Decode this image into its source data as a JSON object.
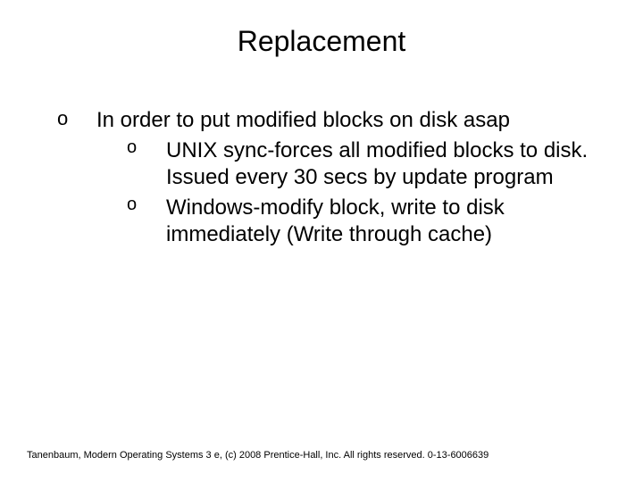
{
  "title": "Replacement",
  "body": {
    "level1": {
      "marker": "o",
      "text": "In order to put modified blocks on disk asap"
    },
    "level2": [
      {
        "marker": "o",
        "text": "UNIX sync-forces all modified blocks to disk. Issued every 30 secs by update program"
      },
      {
        "marker": "o",
        "text": "Windows-modify block, write to disk immediately (Write through cache)"
      }
    ]
  },
  "footer": "Tanenbaum, Modern Operating Systems 3 e, (c) 2008 Prentice-Hall, Inc. All rights reserved. 0-13-6006639",
  "style": {
    "background_color": "#ffffff",
    "title_fontsize": 32,
    "body_fontsize": 24,
    "footer_fontsize": 11,
    "text_color": "#000000"
  }
}
